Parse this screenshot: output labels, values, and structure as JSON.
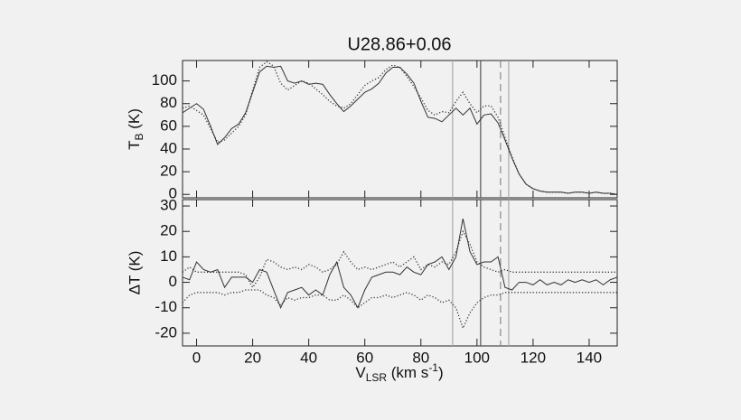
{
  "chart_data": [
    {
      "type": "line",
      "title": "U28.86+0.06",
      "ylabel": [
        "T",
        "B",
        " (K)"
      ],
      "xlim": [
        -5,
        150
      ],
      "ylim": [
        -3,
        118
      ],
      "yticks": [
        0,
        20,
        40,
        60,
        80,
        100
      ],
      "x": [
        -5,
        -2.5,
        0,
        2.5,
        5,
        7.5,
        10,
        12.5,
        15,
        17.5,
        20,
        22.5,
        25,
        27.5,
        30,
        32.5,
        35,
        37.5,
        40,
        42.5,
        45,
        47.5,
        50,
        52.5,
        55,
        57.5,
        60,
        62.5,
        65,
        67.5,
        70,
        72.5,
        75,
        77.5,
        80,
        82.5,
        85,
        87.5,
        90,
        92.5,
        95,
        97.5,
        100,
        102.5,
        105,
        107.5,
        110,
        112.5,
        115,
        117.5,
        120,
        122.5,
        125,
        127.5,
        130,
        132.5,
        135,
        137.5,
        140,
        142.5,
        145,
        147.5,
        150
      ],
      "series": [
        {
          "color": "#333333",
          "dash": "solid",
          "values": [
            72,
            76,
            80,
            75,
            60,
            44,
            50,
            58,
            62,
            72,
            90,
            108,
            113,
            112,
            113,
            100,
            98,
            100,
            97,
            98,
            97,
            88,
            80,
            73,
            78,
            84,
            90,
            93,
            98,
            107,
            112,
            112,
            106,
            98,
            82,
            68,
            67,
            64,
            70,
            76,
            70,
            76,
            62,
            70,
            71,
            63,
            48,
            32,
            18,
            9,
            5,
            3,
            2,
            2,
            2,
            1,
            2,
            2,
            1,
            2,
            1,
            1,
            0
          ]
        },
        {
          "color": "#333333",
          "dash": "dotted",
          "values": [
            76,
            78,
            74,
            70,
            58,
            46,
            48,
            54,
            60,
            70,
            92,
            112,
            117,
            113,
            98,
            92,
            96,
            100,
            98,
            93,
            88,
            82,
            78,
            76,
            80,
            88,
            96,
            100,
            103,
            110,
            114,
            112,
            104,
            95,
            85,
            74,
            70,
            73,
            72,
            82,
            90,
            80,
            72,
            78,
            78,
            68,
            50,
            33,
            18,
            9,
            5,
            3,
            2,
            2,
            2,
            1,
            2,
            2,
            1,
            2,
            1,
            1,
            0
          ]
        }
      ],
      "vlines": [
        {
          "value": 91.3,
          "color": "#aaaaaa",
          "dash": "solid"
        },
        {
          "value": 101.3,
          "color": "#555555",
          "dash": "solid"
        },
        {
          "value": 108.4,
          "color": "#888888",
          "dash": "dashed"
        },
        {
          "value": 111.3,
          "color": "#aaaaaa",
          "dash": "solid"
        }
      ]
    },
    {
      "type": "line",
      "ylabel": "ΔT (K)",
      "xlabel": [
        "V",
        "LSR",
        " (km s",
        "-1",
        ")"
      ],
      "xlim": [
        -5,
        150
      ],
      "ylim": [
        -25,
        32.5
      ],
      "xticks": [
        0,
        20,
        40,
        60,
        80,
        100,
        120,
        140
      ],
      "yticks": [
        -20,
        -10,
        0,
        10,
        20,
        30
      ],
      "x": [
        -5,
        -2.5,
        0,
        2.5,
        5,
        7.5,
        10,
        12.5,
        15,
        17.5,
        20,
        22.5,
        25,
        27.5,
        30,
        32.5,
        35,
        37.5,
        40,
        42.5,
        45,
        47.5,
        50,
        52.5,
        55,
        57.5,
        60,
        62.5,
        65,
        67.5,
        70,
        72.5,
        75,
        77.5,
        80,
        82.5,
        85,
        87.5,
        90,
        92.5,
        95,
        97.5,
        100,
        102.5,
        105,
        107.5,
        110,
        112.5,
        115,
        117.5,
        120,
        122.5,
        125,
        127.5,
        130,
        132.5,
        135,
        137.5,
        140,
        142.5,
        145,
        147.5,
        150
      ],
      "series": [
        {
          "color": "#333333",
          "dash": "solid",
          "values": [
            2,
            1,
            8,
            5,
            4,
            5,
            -2,
            2,
            2,
            2,
            0,
            5,
            4,
            -3,
            -10,
            -4,
            -3,
            -2,
            -5,
            -3,
            -5,
            3,
            8,
            -2,
            -5,
            -10,
            -3,
            2,
            3,
            4,
            4,
            3,
            6,
            4,
            3,
            7,
            8,
            10,
            5,
            10,
            25,
            12,
            7,
            8,
            8,
            10,
            -2,
            -3,
            0,
            0,
            -1,
            1,
            -1,
            0,
            -1,
            1,
            0,
            1,
            0,
            1,
            -1,
            1,
            2
          ]
        },
        {
          "color": "#333333",
          "dash": "dotted",
          "values": [
            4,
            6,
            4,
            4,
            4,
            4,
            4,
            4,
            4,
            3,
            -2,
            2,
            9,
            8,
            6,
            5,
            6,
            5,
            7,
            6,
            4,
            5,
            7,
            12,
            8,
            5,
            6,
            5,
            6,
            7,
            8,
            6,
            8,
            10,
            5,
            7,
            6,
            8,
            7,
            12,
            20,
            15,
            8,
            6,
            5,
            4,
            5,
            4,
            4,
            4,
            4,
            4,
            4,
            4,
            4,
            4,
            4,
            4,
            4,
            4,
            4,
            4,
            4
          ]
        },
        {
          "color": "#333333",
          "dash": "dotted",
          "values": [
            -8,
            -5,
            -4,
            -4,
            -4,
            -4,
            -5,
            -4,
            -4,
            -3,
            -3,
            -3,
            -5,
            -6,
            -9,
            -6,
            -7,
            -6,
            -6,
            -5,
            -5,
            -7,
            -7,
            -5,
            -7,
            -10,
            -8,
            -6,
            -6,
            -5,
            -6,
            -5,
            -4,
            -5,
            -7,
            -5,
            -6,
            -8,
            -7,
            -10,
            -18,
            -12,
            -8,
            -6,
            -5,
            -5,
            -4,
            -4,
            -4,
            -4,
            -4,
            -4,
            -4,
            -4,
            -4,
            -4,
            -4,
            -4,
            -4,
            -4,
            -4,
            -4,
            -4
          ]
        }
      ],
      "vlines": [
        {
          "value": 91.3,
          "color": "#aaaaaa",
          "dash": "solid"
        },
        {
          "value": 101.3,
          "color": "#555555",
          "dash": "solid"
        },
        {
          "value": 108.4,
          "color": "#888888",
          "dash": "dashed"
        },
        {
          "value": 111.3,
          "color": "#aaaaaa",
          "dash": "solid"
        }
      ]
    }
  ]
}
